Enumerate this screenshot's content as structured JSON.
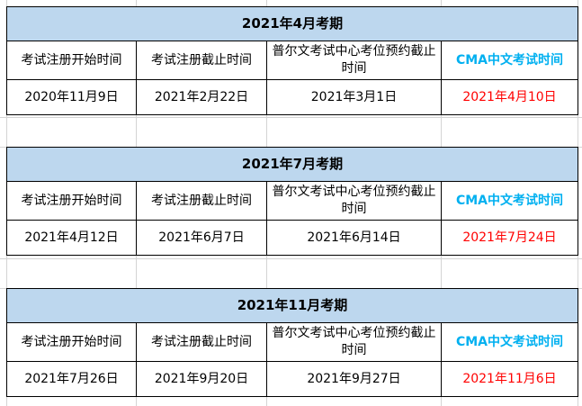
{
  "colors": {
    "header_bg": "#bdd7ee",
    "cma_label": "#00b0f0",
    "exam_date": "#ff0000"
  },
  "labels": [
    "考试注册开始时间",
    "考试注册截止时间",
    "普尔文考试中心考位预约截止时间",
    "CMA中文考试时间"
  ],
  "sessions": [
    {
      "title": "2021年4月考期",
      "values": [
        "2020年11月9日",
        "2021年2月22日",
        "2021年3月1日",
        "2021年4月10日"
      ]
    },
    {
      "title": "2021年7月考期",
      "values": [
        "2021年4月12日",
        "2021年6月7日",
        "2021年6月14日",
        "2021年7月24日"
      ]
    },
    {
      "title": "2021年11月考期",
      "values": [
        "2021年7月26日",
        "2021年9月20日",
        "2021年9月27日",
        "2021年11月6日"
      ]
    }
  ]
}
